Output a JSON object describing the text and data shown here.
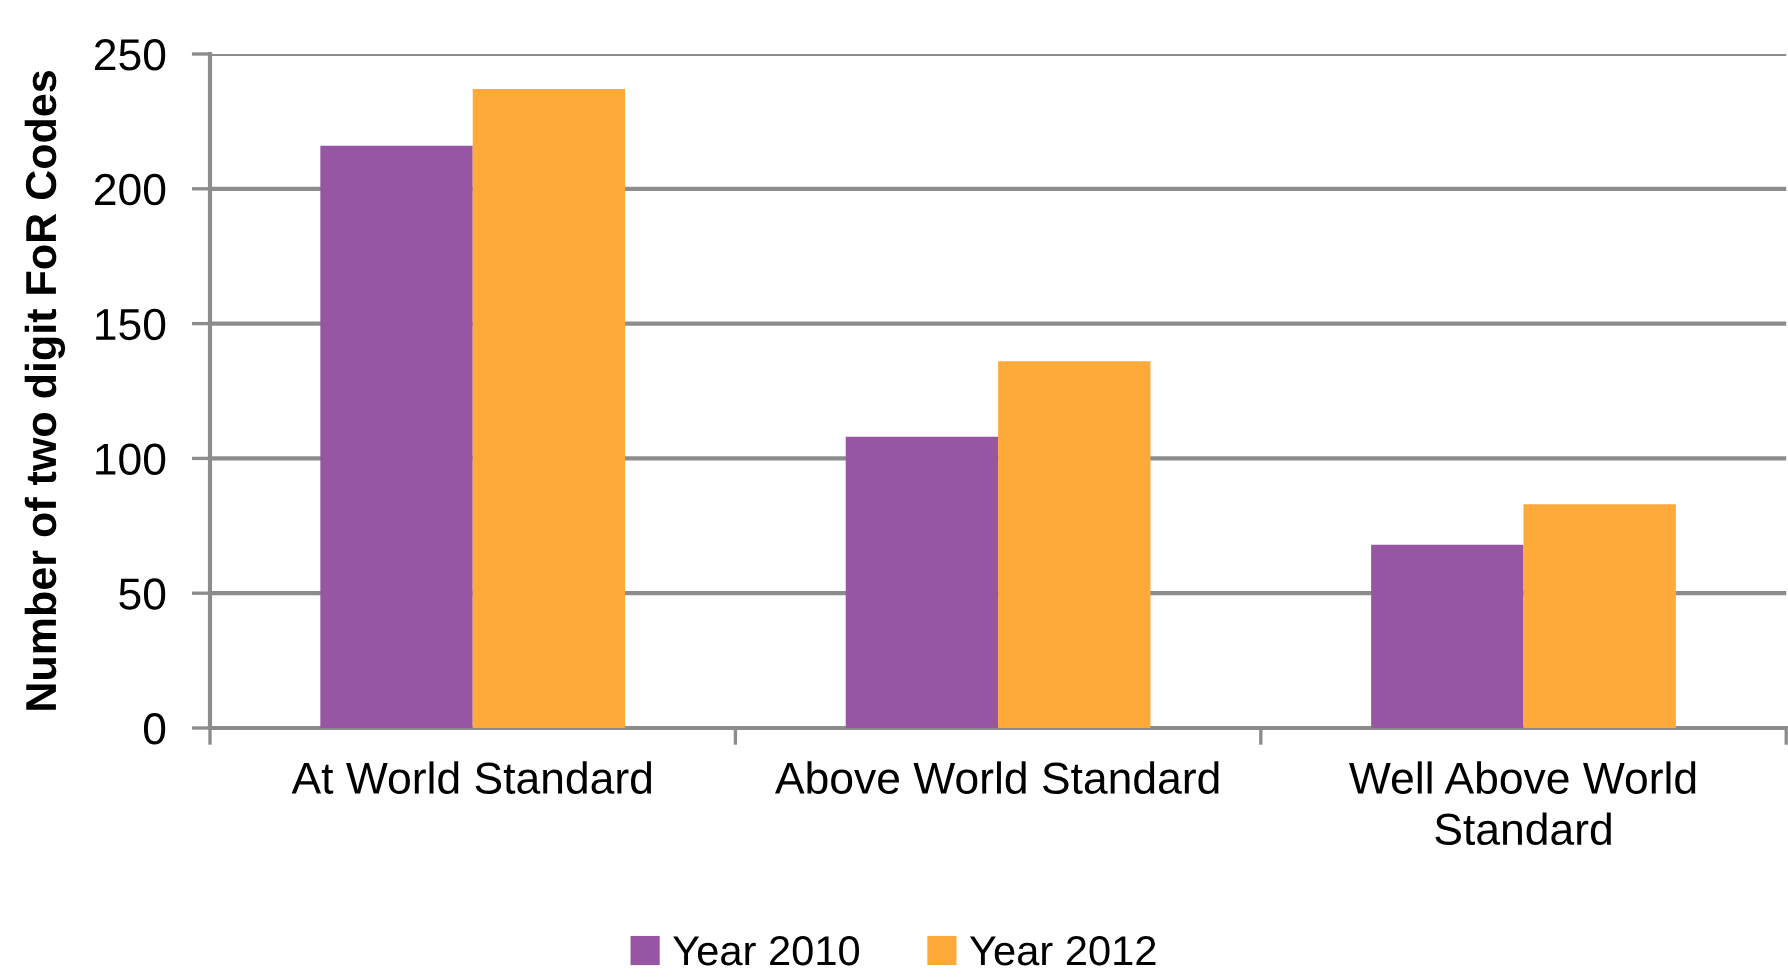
{
  "chart_data": {
    "type": "bar",
    "ylabel": "Number of two digit FoR Codes",
    "categories": [
      "At World Standard",
      "Above World Standard",
      "Well Above World Standard"
    ],
    "series": [
      {
        "name": "Year 2010",
        "color": "#9656a3",
        "values": [
          216,
          108,
          68
        ]
      },
      {
        "name": "Year 2012",
        "color": "#fdaa3a",
        "values": [
          237,
          136,
          83
        ]
      }
    ],
    "ylim": [
      0,
      250
    ],
    "yticks": [
      0,
      50,
      100,
      150,
      200,
      250
    ],
    "grid": "y",
    "legend": "bottom"
  }
}
